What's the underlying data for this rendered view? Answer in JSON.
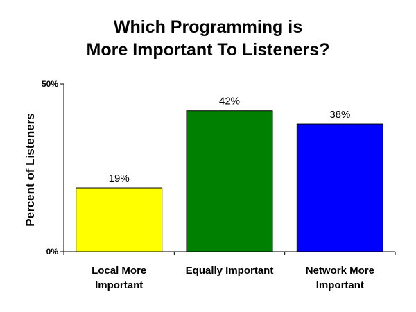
{
  "chart_data": {
    "type": "bar",
    "title": [
      "Which Programming is",
      "More Important To Listeners?"
    ],
    "ylabel": "Percent of Listeners",
    "xlabel": "",
    "ylim": [
      0,
      50
    ],
    "yticks": [
      {
        "value": 0,
        "label": "0%"
      },
      {
        "value": 50,
        "label": "50%"
      }
    ],
    "categories": [
      [
        "Local More",
        "Important"
      ],
      [
        "Equally Important"
      ],
      [
        "Network More",
        "Important"
      ]
    ],
    "values": [
      19,
      42,
      38
    ],
    "value_labels": [
      "19%",
      "42%",
      "38%"
    ],
    "colors": [
      "#ffff00",
      "#008000",
      "#0000ff"
    ],
    "grid": false,
    "legend": "none"
  }
}
